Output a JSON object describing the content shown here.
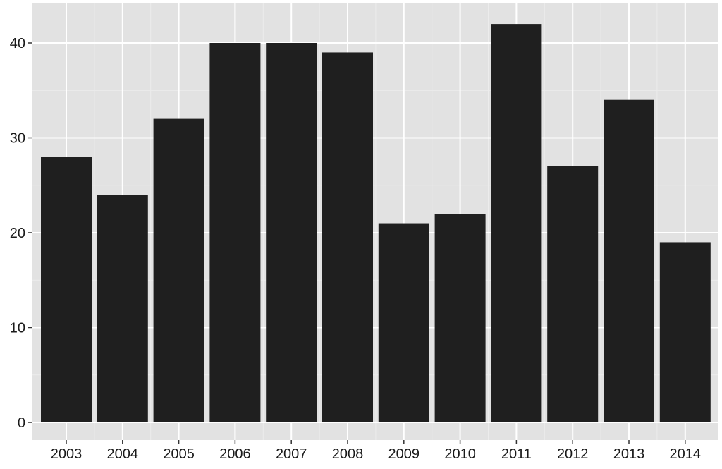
{
  "chart_data": {
    "type": "bar",
    "categories": [
      "2003",
      "2004",
      "2005",
      "2006",
      "2007",
      "2008",
      "2009",
      "2010",
      "2011",
      "2012",
      "2013",
      "2014"
    ],
    "values": [
      28,
      24,
      32,
      40,
      40,
      39,
      21,
      22,
      42,
      27,
      34,
      19
    ],
    "title": "",
    "xlabel": "",
    "ylabel": "",
    "ylim": [
      0,
      44
    ],
    "yticks": [
      0,
      10,
      20,
      30,
      40
    ],
    "grid": true,
    "legend": "none",
    "colors": {
      "bar": "#1f1f1f",
      "panel": "#e2e2e2",
      "grid": "#ffffff"
    }
  }
}
